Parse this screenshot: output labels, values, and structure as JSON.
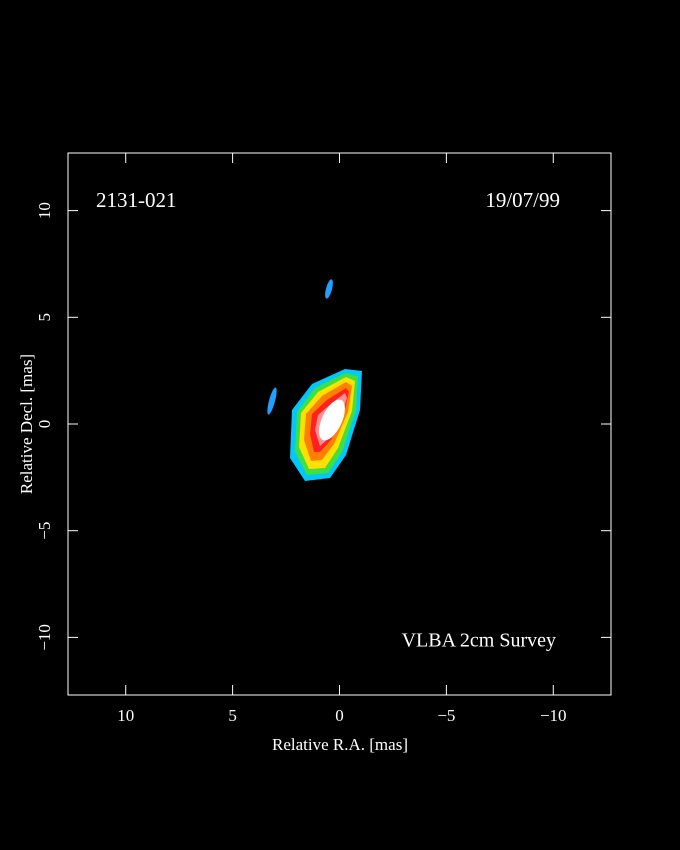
{
  "chart_data": {
    "type": "image",
    "source": "2131-021",
    "date": "19/07/99",
    "annotation": "VLBA 2cm Survey",
    "x_label": "Relative R.A. [mas]",
    "y_label": "Relative Decl. [mas]",
    "xlim": [
      12.7,
      -12.7
    ],
    "ylim": [
      -12.7,
      12.7
    ],
    "xticks": [
      10,
      5,
      0,
      {
        "value": -5,
        "label": "−5"
      },
      {
        "value": -10,
        "label": "−10"
      }
    ],
    "yticks": [
      {
        "value": -10,
        "label": "−10"
      },
      {
        "value": -5,
        "label": "−5"
      },
      0,
      5,
      10
    ]
  }
}
